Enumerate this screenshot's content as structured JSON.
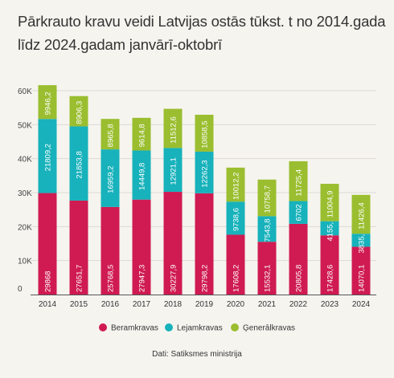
{
  "title": "Pārkrauto kravu veidi Latvijas ostās tūkst. t  no 2014.gada līdz 2024.gadam janvārī-oktobrī",
  "source": "Dati: Satiksmes ministrija",
  "colors": {
    "beramkravas": "#cf1b52",
    "lejamkravas": "#17b2bb",
    "generalkravas": "#9abe2f",
    "grid": "#dcdad4",
    "axis": "#555555"
  },
  "chart_data": {
    "type": "bar",
    "stacked": true,
    "title": "Pārkrauto kravu veidi Latvijas ostās tūkst. t  no 2014.gada līdz 2024.gadam janvārī-oktobrī",
    "xlabel": "",
    "ylabel": "",
    "ylim": [
      0,
      60000
    ],
    "yticks": [
      0,
      10000,
      20000,
      30000,
      40000,
      50000,
      60000
    ],
    "ytick_labels": [
      "0",
      "10K",
      "20K",
      "30K",
      "40K",
      "50K",
      "60K"
    ],
    "grid": true,
    "legend_position": "bottom",
    "categories": [
      "2014",
      "2015",
      "2016",
      "2017",
      "2018",
      "2019",
      "2020",
      "2021",
      "2022",
      "2023",
      "2024"
    ],
    "series": [
      {
        "name": "Beramkravas",
        "color": "#cf1b52",
        "values": [
          29868,
          27651.7,
          25768.5,
          27947.3,
          30227.9,
          29798.2,
          17608.2,
          15532.1,
          20805.8,
          17428.6,
          14070.1
        ],
        "labels": [
          "29868",
          "27651,7",
          "25768,5",
          "27947,3",
          "30227,9",
          "29798,2",
          "17608,2",
          "15532,1",
          "20805,8",
          "17428,6",
          "14070,1"
        ]
      },
      {
        "name": "Lejamkravas",
        "color": "#17b2bb",
        "values": [
          21809.2,
          21853.8,
          16959.2,
          14449.8,
          12921.1,
          12262.3,
          9738.6,
          7543.8,
          6702,
          4155.1,
          3835.3
        ],
        "labels": [
          "21809,2",
          "21853,8",
          "16959,2",
          "14449,8",
          "12921,1",
          "12262,3",
          "9738,6",
          "7543,8",
          "6702",
          "4155,1",
          "3835,3"
        ]
      },
      {
        "name": "Ģenerālkravas",
        "color": "#9abe2f",
        "values": [
          9946.2,
          8906.3,
          8965.8,
          9614.8,
          11512.6,
          10858.5,
          10012.2,
          10758.7,
          11725.4,
          11004.9,
          11426.4
        ],
        "labels": [
          "9946,2",
          "8906,3",
          "8965,8",
          "9614,8",
          "11512,6",
          "10858,5",
          "10012,2",
          "10758,7",
          "11725,4",
          "11004,9",
          "11426,4"
        ]
      }
    ]
  }
}
